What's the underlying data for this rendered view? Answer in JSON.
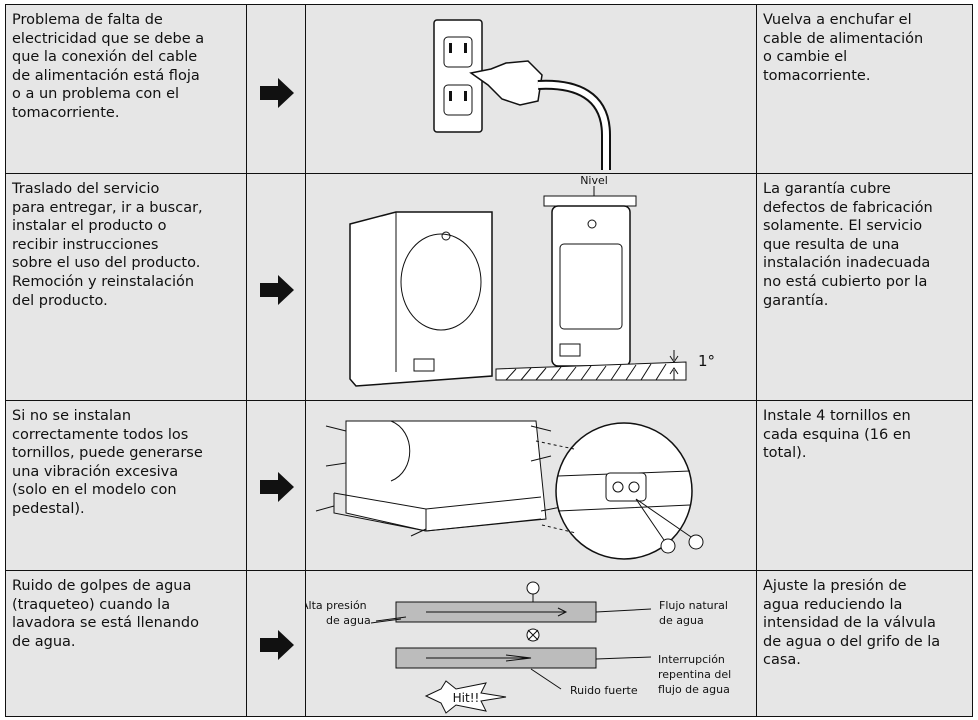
{
  "rows": [
    {
      "problem": [
        "Problema de falta de",
        "electricidad que se debe a",
        "que la conexión del cable",
        "de alimentación está floja",
        "o a un problema con el",
        "tomacorriente."
      ],
      "solution": [
        "Vuelva a enchufar el",
        "cable de alimentación",
        "o cambie el",
        "tomacorriente."
      ]
    },
    {
      "problem": [
        "Traslado del servicio",
        "para entregar, ir a buscar,",
        "instalar el producto o",
        "recibir instrucciones",
        "sobre el uso del producto.",
        "Remoción y reinstalación",
        "del producto."
      ],
      "solution": [
        "La garantía cubre",
        "defectos de fabricación",
        "solamente. El servicio",
        "que resulta de una",
        "instalación inadecuada",
        "no está cubierto por la",
        "garantía."
      ],
      "labels": {
        "level": "Nivel",
        "angle": "1°"
      }
    },
    {
      "problem": [
        "Si no se instalan",
        "correctamente todos los",
        "tornillos, puede generarse",
        "una vibración excesiva",
        "(solo en el modelo con",
        "pedestal)."
      ],
      "solution": [
        "Instale 4 tornillos en",
        "cada esquina (16 en",
        "total)."
      ]
    },
    {
      "problem": [
        "Ruido de golpes de agua",
        "(traqueteo) cuando la",
        "lavadora se está llenando",
        "de agua."
      ],
      "solution": [
        "Ajuste la presión de",
        "agua reduciendo la",
        "intensidad de la válvula",
        "de agua o del grifo de la",
        "casa."
      ],
      "labels": {
        "high_pressure": [
          "Alta presión",
          "de agua"
        ],
        "natural_flow": [
          "Flujo natural",
          "de agua"
        ],
        "interruption": [
          "Interrupción",
          "repentina del",
          "flujo de agua"
        ],
        "loud_noise": "Ruido fuerte",
        "hit": "Hit!!"
      }
    }
  ]
}
